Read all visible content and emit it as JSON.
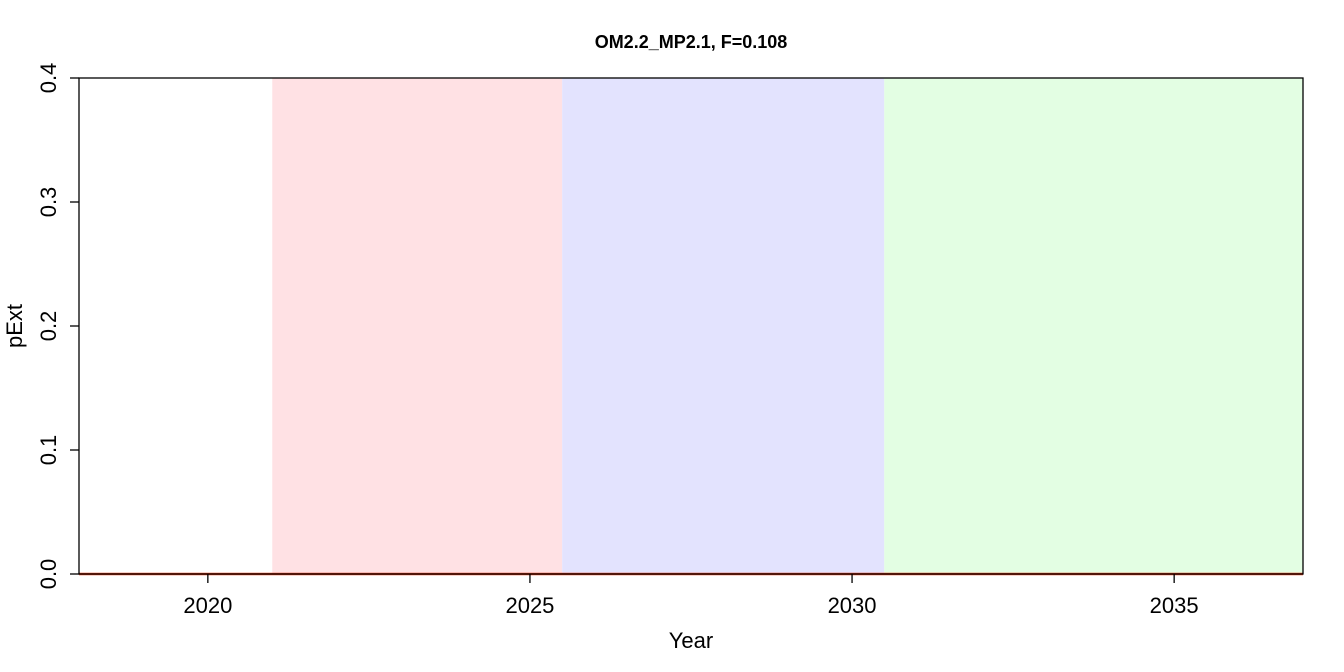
{
  "chart_data": {
    "type": "line",
    "title": "OM2.2_MP2.1, F=0.108",
    "xlabel": "Year",
    "ylabel": "pExt",
    "xlim": [
      2018,
      2037
    ],
    "ylim": [
      0,
      0.4
    ],
    "x_ticks": [
      2020,
      2025,
      2030,
      2035
    ],
    "y_ticks": [
      0.0,
      0.1,
      0.2,
      0.3,
      0.4
    ],
    "y_tick_labels": [
      "0.0",
      "0.1",
      "0.2",
      "0.3",
      "0.4"
    ],
    "grid": false,
    "legend": "none",
    "shaded_periods": [
      {
        "from": 2021,
        "to": 2025.5,
        "color": "#FFE1E4"
      },
      {
        "from": 2025.5,
        "to": 2030.5,
        "color": "#E3E3FE"
      },
      {
        "from": 2030.5,
        "to": 2037,
        "color": "#E3FEE3"
      }
    ],
    "series": [
      {
        "color": "#E8401C",
        "x": [
          2018,
          2019,
          2020,
          2021,
          2022,
          2023,
          2024,
          2025,
          2026,
          2027,
          2028,
          2029,
          2030,
          2031,
          2032,
          2033,
          2034,
          2035,
          2036,
          2037
        ],
        "values": [
          0,
          0,
          0,
          0,
          0,
          0,
          0,
          0,
          0,
          0,
          0,
          0,
          0,
          0,
          0,
          0,
          0,
          0,
          0,
          0
        ]
      }
    ]
  }
}
